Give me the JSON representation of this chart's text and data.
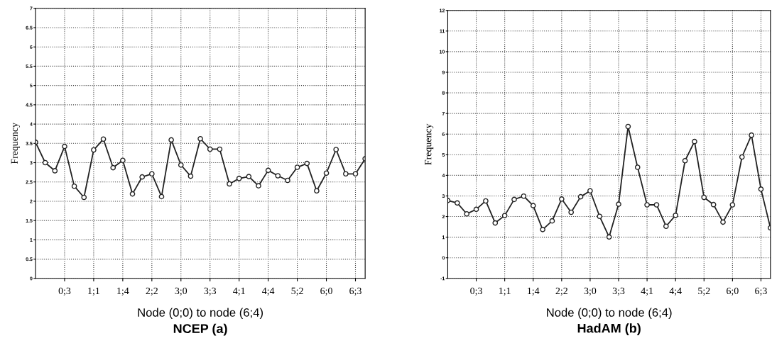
{
  "chart_data": [
    {
      "type": "line",
      "title": "NCEP (a)",
      "xlabel": "Node (0;0) to node (6;4)",
      "ylabel": "Frequency",
      "categories": [
        null,
        null,
        null,
        "0;3",
        null,
        null,
        "1;1",
        null,
        null,
        "1;4",
        null,
        null,
        "2;2",
        null,
        null,
        "3;0",
        null,
        null,
        "3;3",
        null,
        null,
        "4;1",
        null,
        null,
        "4;4",
        null,
        null,
        "5;2",
        null,
        null,
        "6;0",
        null,
        null,
        "6;3",
        null
      ],
      "series": [
        {
          "color": "#222222",
          "values": [
            3.53,
            3.0,
            2.79,
            3.42,
            2.39,
            2.1,
            3.33,
            3.61,
            2.87,
            3.06,
            2.19,
            2.63,
            2.71,
            2.12,
            3.59,
            2.94,
            2.65,
            3.62,
            3.35,
            3.35,
            2.45,
            2.59,
            2.64,
            2.4,
            2.8,
            2.66,
            2.54,
            2.88,
            2.98,
            2.27,
            2.73,
            3.34,
            2.71,
            2.71,
            3.1
          ]
        }
      ],
      "ylim": [
        0,
        7
      ],
      "yticks": [
        0,
        0.5,
        1,
        1.5,
        2,
        2.5,
        3,
        3.5,
        4,
        4.5,
        5,
        5.5,
        6,
        6.5,
        7
      ],
      "grid": true,
      "marker": "circle",
      "line_style": "solid"
    },
    {
      "type": "line",
      "title": "HadAM (b)",
      "xlabel": "Node (0;0) to node (6;4)",
      "ylabel": "Frequency",
      "categories": [
        null,
        null,
        null,
        "0;3",
        null,
        null,
        "1;1",
        null,
        null,
        "1;4",
        null,
        null,
        "2;2",
        null,
        null,
        "3;0",
        null,
        null,
        "3;3",
        null,
        null,
        "4;1",
        null,
        null,
        "4;4",
        null,
        null,
        "5;2",
        null,
        null,
        "6;0",
        null,
        null,
        "6;3",
        null
      ],
      "series": [
        {
          "color": "#222222",
          "values": [
            2.78,
            2.66,
            2.13,
            2.35,
            2.76,
            1.69,
            2.05,
            2.83,
            2.99,
            2.53,
            1.37,
            1.79,
            2.85,
            2.21,
            2.96,
            3.25,
            2.01,
            1.01,
            2.6,
            6.37,
            4.39,
            2.57,
            2.57,
            1.53,
            2.06,
            4.71,
            5.64,
            2.93,
            2.58,
            1.73,
            2.57,
            4.89,
            5.95,
            3.33,
            1.45
          ]
        }
      ],
      "ylim": [
        -1,
        12
      ],
      "yticks": [
        -1,
        0,
        1,
        2,
        3,
        4,
        5,
        6,
        7,
        8,
        9,
        10,
        11,
        12
      ],
      "grid": true,
      "marker": "circle",
      "line_style": "solid"
    }
  ]
}
